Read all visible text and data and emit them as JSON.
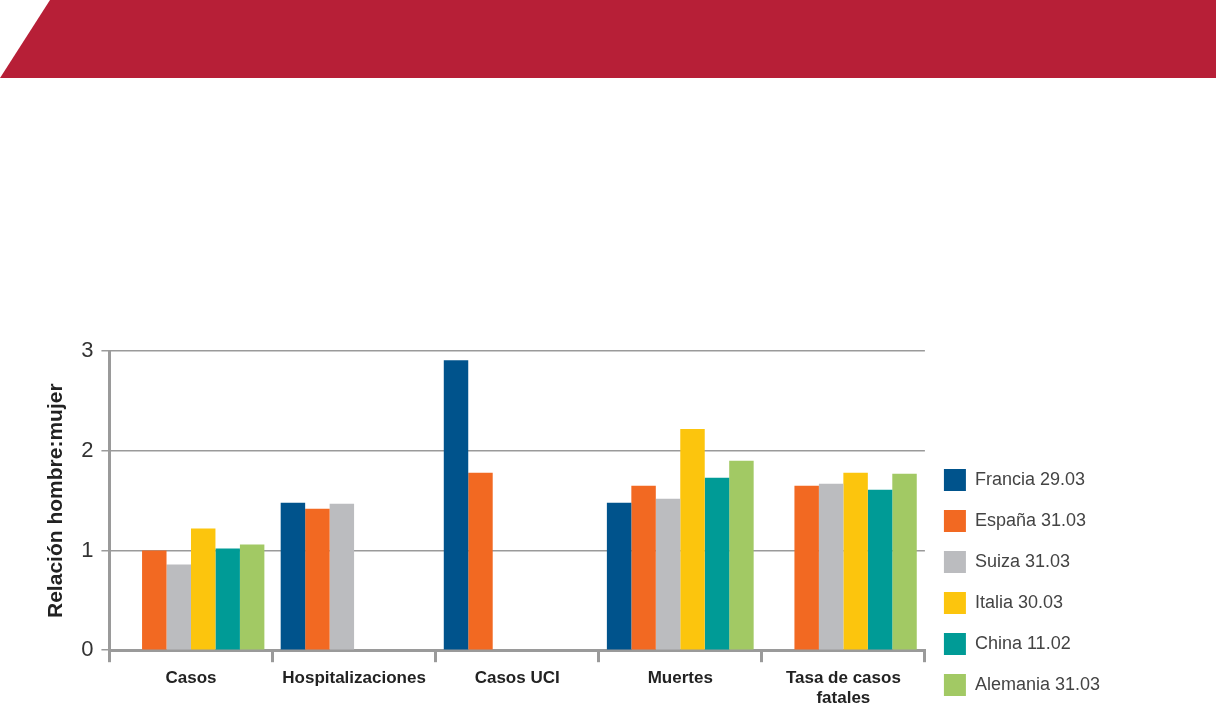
{
  "chart_data": {
    "type": "bar",
    "ylabel": "Relación hombre:mujer",
    "categories": [
      "Casos",
      "Hospitalizaciones",
      "Casos UCI",
      "Muertes",
      "Tasa de casos fatales"
    ],
    "series": [
      {
        "name": "Francia 29.03",
        "color": "#00538c",
        "values": [
          null,
          1.48,
          2.91,
          1.48,
          null
        ]
      },
      {
        "name": "España 31.03",
        "color": "#f26922",
        "values": [
          1.0,
          1.42,
          1.78,
          1.65,
          1.65
        ]
      },
      {
        "name": "Suiza 31.03",
        "color": "#bbbcbf",
        "values": [
          0.86,
          1.47,
          null,
          1.52,
          1.67
        ]
      },
      {
        "name": "Italia 30.03",
        "color": "#fcc50d",
        "values": [
          1.22,
          null,
          null,
          2.22,
          1.78
        ]
      },
      {
        "name": "China 11.02",
        "color": "#009b96",
        "values": [
          1.02,
          null,
          null,
          1.73,
          1.61
        ]
      },
      {
        "name": "Alemania 31.03",
        "color": "#a2c964",
        "values": [
          1.06,
          null,
          null,
          1.9,
          1.77
        ]
      }
    ],
    "ylim": [
      0,
      3
    ],
    "yticks": [
      0,
      1,
      2,
      3
    ],
    "grid": "y",
    "legend": "right"
  }
}
